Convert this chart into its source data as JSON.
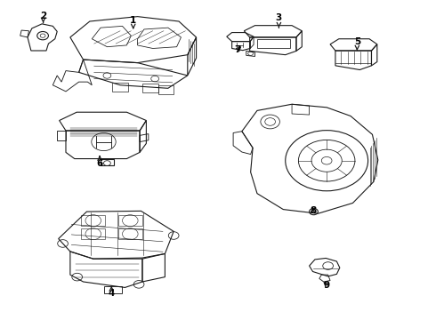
{
  "background_color": "#ffffff",
  "line_color": "#1a1a1a",
  "label_color": "#000000",
  "figsize": [
    4.9,
    3.6
  ],
  "dpi": 100,
  "labels": {
    "1": [
      0.305,
      0.938,
      0.305,
      0.91
    ],
    "2": [
      0.098,
      0.952,
      0.098,
      0.93
    ],
    "3": [
      0.64,
      0.945,
      0.64,
      0.915
    ],
    "4": [
      0.255,
      0.082,
      0.255,
      0.105
    ],
    "5": [
      0.82,
      0.87,
      0.82,
      0.843
    ],
    "6": [
      0.228,
      0.49,
      0.228,
      0.515
    ],
    "7": [
      0.545,
      0.845,
      0.558,
      0.862
    ],
    "8": [
      0.718,
      0.34,
      0.718,
      0.358
    ],
    "9": [
      0.75,
      0.108,
      0.738,
      0.124
    ]
  }
}
